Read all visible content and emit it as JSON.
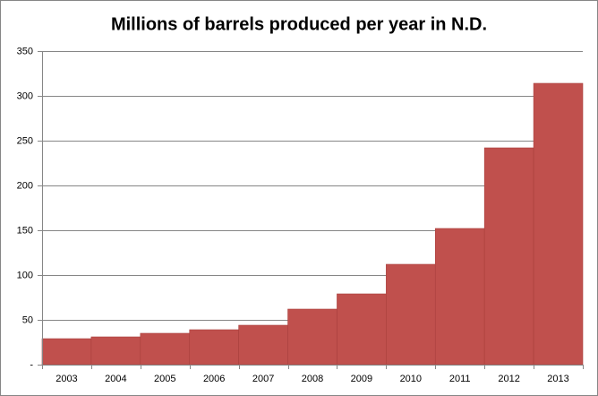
{
  "chart_data": {
    "type": "bar",
    "title": "Millions of barrels produced per year in N.D.",
    "categories": [
      "2003",
      "2004",
      "2005",
      "2006",
      "2007",
      "2008",
      "2009",
      "2010",
      "2011",
      "2012",
      "2013"
    ],
    "values": [
      29,
      31,
      35,
      39,
      44,
      62,
      79,
      112,
      152,
      242,
      314
    ],
    "color": "#c0504d",
    "ylim": [
      0,
      350
    ],
    "yticks": [
      {
        "value": 0,
        "label": "-"
      },
      50,
      100,
      150,
      200,
      250,
      300,
      350
    ],
    "grid": true
  }
}
